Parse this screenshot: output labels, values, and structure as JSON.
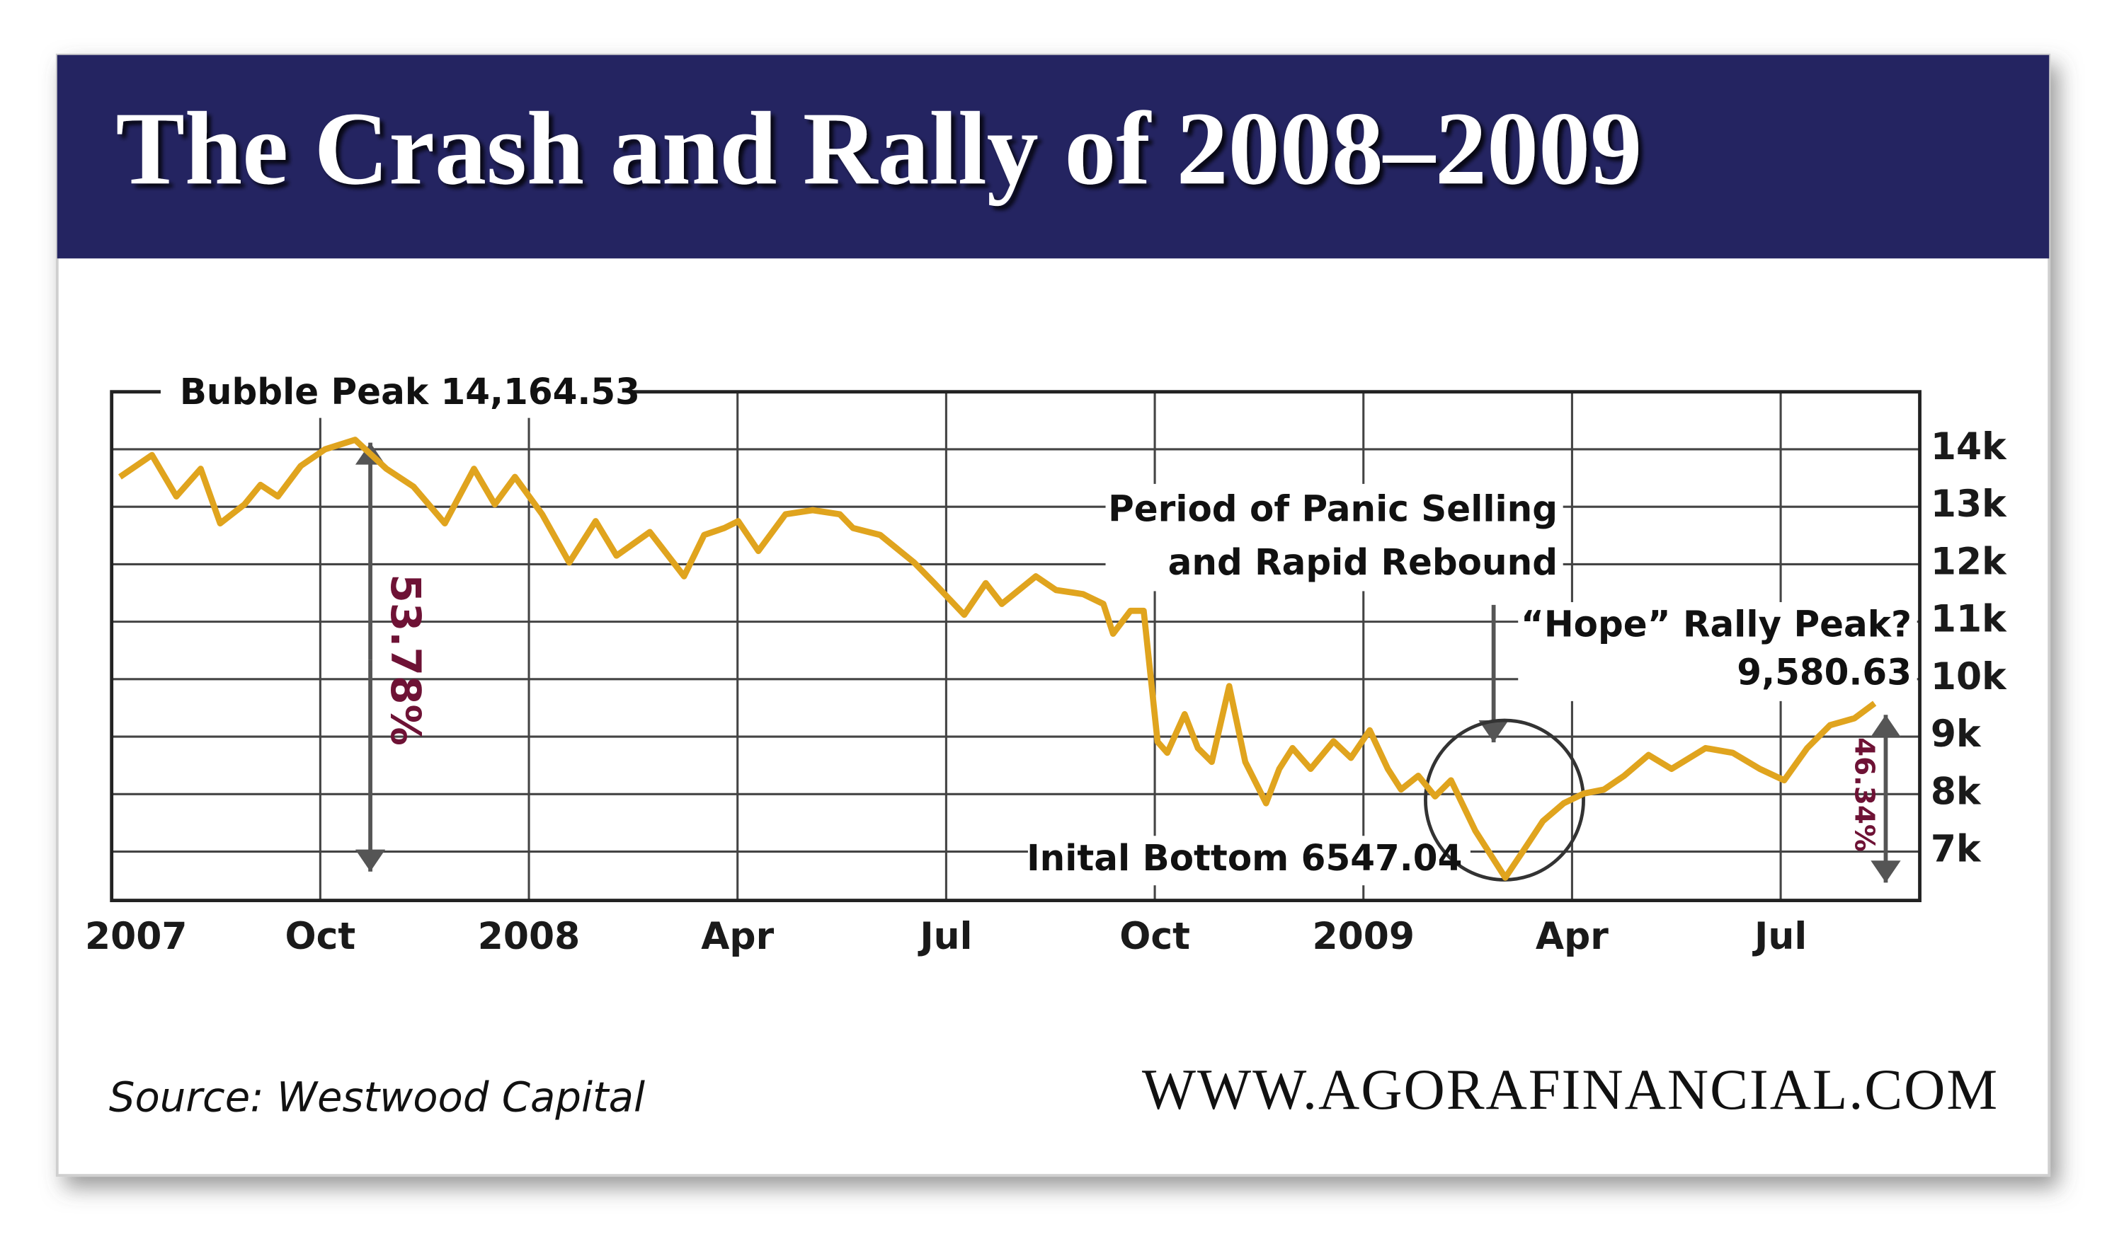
{
  "chart_data": {
    "type": "line",
    "title": "The Crash and Rally of 2008–2009",
    "source": "Source: Westwood Capital",
    "website": "WWW.AGORAFINANCIAL.COM",
    "annotations": [
      "Bubble Peak 14,164.53",
      "53.78%",
      "Period of Panic Selling",
      "and Rapid Rebound",
      "“Hope” Rally Peak?",
      "9,580.63",
      "Inital Bottom 6547.04",
      "46.34%"
    ],
    "x": [
      6.12,
      6.58,
      6.93,
      7.28,
      7.56,
      7.91,
      8.14,
      8.39,
      8.72,
      9.07,
      9.5,
      9.95,
      10.34,
      10.79,
      11.21,
      11.51,
      11.8,
      12.19,
      12.58,
      12.96,
      13.26,
      13.74,
      14.23,
      14.52,
      14.81,
      15.01,
      15.3,
      15.69,
      16.08,
      16.47,
      16.66,
      17.05,
      17.54,
      17.83,
      18.26,
      18.57,
      18.8,
      19.29,
      19.58,
      19.97,
      20.26,
      20.4,
      20.65,
      20.84,
      21.04,
      21.18,
      21.43,
      21.62,
      21.82,
      22.07,
      22.3,
      22.6,
      22.79,
      22.98,
      23.24,
      23.57,
      23.82,
      24.09,
      24.35,
      24.54,
      24.79,
      25.03,
      25.26,
      25.61,
      26.04,
      26.29,
      26.58,
      26.88,
      27.17,
      27.46,
      27.75,
      28.1,
      28.43,
      28.92,
      29.31,
      29.7,
      30.05,
      30.38,
      30.71,
      31.06,
      31.35
    ],
    "series": [
      {
        "name": "Dow Jones",
        "color": "#e0a41e",
        "values": [
          13520,
          13900,
          13180,
          13660,
          12710,
          13040,
          13380,
          13180,
          13710,
          14000,
          14164.53,
          13660,
          13350,
          12710,
          13660,
          13040,
          13520,
          12870,
          12030,
          12750,
          12150,
          12560,
          11790,
          12510,
          12630,
          12750,
          12230,
          12870,
          12940,
          12870,
          12630,
          12510,
          12030,
          11670,
          11120,
          11670,
          11310,
          11790,
          11550,
          11480,
          11310,
          10790,
          11190,
          11190,
          8910,
          8720,
          9390,
          8800,
          8560,
          9880,
          8560,
          7840,
          8440,
          8800,
          8440,
          8920,
          8630,
          9110,
          8440,
          8080,
          8320,
          7960,
          8240,
          7360,
          6547.04,
          7000,
          7530,
          7840,
          8010,
          8080,
          8320,
          8680,
          8440,
          8800,
          8720,
          8440,
          8240,
          8800,
          9200,
          9320,
          9580.63
        ]
      }
    ],
    "xlim": [
      6,
      32
    ],
    "xticks": [
      {
        "value": 6,
        "label": "2007"
      },
      {
        "value": 9,
        "label": "Oct"
      },
      {
        "value": 12,
        "label": "2008"
      },
      {
        "value": 15,
        "label": "Apr"
      },
      {
        "value": 18,
        "label": "Jul"
      },
      {
        "value": 21,
        "label": "Oct"
      },
      {
        "value": 24,
        "label": "2009"
      },
      {
        "value": 27,
        "label": "Apr"
      },
      {
        "value": 30,
        "label": "Jul"
      }
    ],
    "ylim": [
      6150,
      15000
    ],
    "yticks": [
      {
        "value": 7000,
        "label": "7k"
      },
      {
        "value": 8000,
        "label": "8k"
      },
      {
        "value": 9000,
        "label": "9k"
      },
      {
        "value": 10000,
        "label": "10k"
      },
      {
        "value": 11000,
        "label": "11k"
      },
      {
        "value": 12000,
        "label": "12k"
      },
      {
        "value": 13000,
        "label": "13k"
      },
      {
        "value": 14000,
        "label": "14k"
      }
    ],
    "grid": true
  }
}
